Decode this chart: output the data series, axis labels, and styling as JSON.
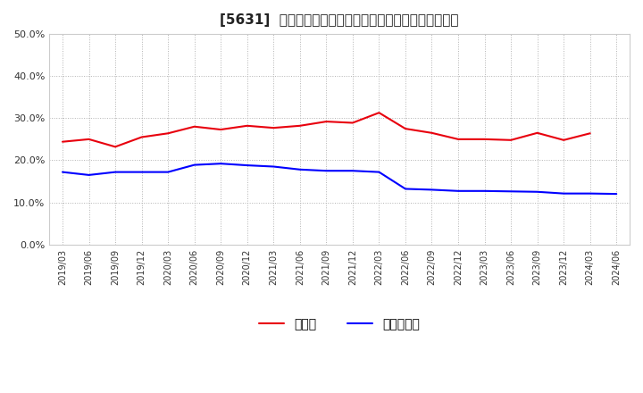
{
  "title": "[5631]  現預金、有利子負債の総資産に対する比率の推移",
  "labels": [
    "2019/03",
    "2019/06",
    "2019/09",
    "2019/12",
    "2020/03",
    "2020/06",
    "2020/09",
    "2020/12",
    "2021/03",
    "2021/06",
    "2021/09",
    "2021/12",
    "2022/03",
    "2022/06",
    "2022/09",
    "2022/12",
    "2023/03",
    "2023/06",
    "2023/09",
    "2023/12",
    "2024/03",
    "2024/06"
  ],
  "cash": [
    0.244,
    0.25,
    0.232,
    0.255,
    0.264,
    0.28,
    0.273,
    0.282,
    0.277,
    0.282,
    0.292,
    0.289,
    0.313,
    0.275,
    0.265,
    0.25,
    0.25,
    0.248,
    0.265,
    0.248,
    0.264,
    null
  ],
  "debt": [
    0.172,
    0.165,
    0.172,
    0.172,
    0.172,
    0.189,
    0.192,
    0.188,
    0.185,
    0.178,
    0.175,
    0.175,
    0.172,
    0.132,
    0.13,
    0.127,
    0.127,
    0.126,
    0.125,
    0.121,
    0.121,
    0.12
  ],
  "cash_color": "#e8000d",
  "debt_color": "#0000ff",
  "bg_color": "#ffffff",
  "plot_bg_color": "#ffffff",
  "grid_color": "#aaaaaa",
  "ylim": [
    0.0,
    0.5
  ],
  "yticks": [
    0.0,
    0.1,
    0.2,
    0.3,
    0.4,
    0.5
  ],
  "legend_cash": "現預金",
  "legend_debt": "有利子負債",
  "title_fontsize": 11,
  "tick_fontsize": 8,
  "legend_fontsize": 10
}
